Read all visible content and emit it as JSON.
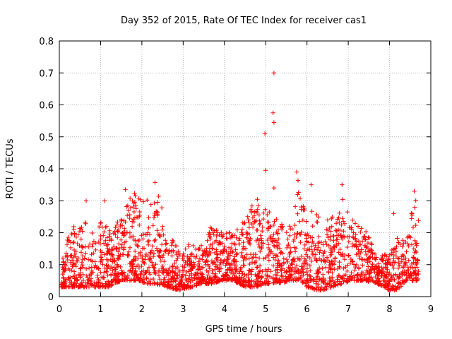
{
  "chart_data": {
    "type": "scatter",
    "title": "Day 352 of 2015, Rate Of TEC Index for receiver cas1",
    "xlabel": "GPS time / hours",
    "ylabel": "ROTI / TECUs",
    "xlim": [
      0,
      9
    ],
    "ylim": [
      0,
      0.8
    ],
    "xticks": [
      "0",
      "1",
      "2",
      "3",
      "4",
      "5",
      "6",
      "7",
      "8",
      "9"
    ],
    "yticks": [
      "0",
      "0.1",
      "0.2",
      "0.3",
      "0.4",
      "0.5",
      "0.6",
      "0.7",
      "0.8"
    ],
    "grid": true,
    "marker": "+",
    "color": "#ff0000",
    "outliers": [
      {
        "x": 5.2,
        "y": 0.7
      },
      {
        "x": 5.18,
        "y": 0.575
      },
      {
        "x": 5.2,
        "y": 0.545
      },
      {
        "x": 4.98,
        "y": 0.51
      },
      {
        "x": 5.0,
        "y": 0.395
      },
      {
        "x": 5.75,
        "y": 0.39
      },
      {
        "x": 5.2,
        "y": 0.34
      },
      {
        "x": 6.85,
        "y": 0.35
      },
      {
        "x": 1.6,
        "y": 0.335
      },
      {
        "x": 8.6,
        "y": 0.33
      },
      {
        "x": 0.65,
        "y": 0.3
      },
      {
        "x": 1.1,
        "y": 0.3
      },
      {
        "x": 8.1,
        "y": 0.26
      },
      {
        "x": 6.1,
        "y": 0.35
      },
      {
        "x": 6.5,
        "y": 0.24
      }
    ],
    "envelope": {
      "x": [
        0.05,
        0.3,
        0.6,
        0.9,
        1.2,
        1.5,
        1.9,
        2.1,
        2.35,
        2.6,
        2.9,
        3.2,
        3.5,
        3.7,
        3.95,
        4.2,
        4.5,
        4.75,
        5.0,
        5.3,
        5.6,
        5.8,
        6.0,
        6.2,
        6.4,
        6.6,
        6.85,
        7.1,
        7.4,
        7.7,
        8.0,
        8.2,
        8.4,
        8.55,
        8.7
      ],
      "hi": [
        0.12,
        0.22,
        0.26,
        0.24,
        0.22,
        0.25,
        0.36,
        0.3,
        0.37,
        0.2,
        0.16,
        0.17,
        0.16,
        0.24,
        0.21,
        0.2,
        0.24,
        0.31,
        0.28,
        0.24,
        0.22,
        0.38,
        0.24,
        0.29,
        0.21,
        0.26,
        0.31,
        0.24,
        0.22,
        0.12,
        0.14,
        0.19,
        0.18,
        0.29,
        0.32
      ],
      "lo": [
        0.03,
        0.03,
        0.03,
        0.03,
        0.03,
        0.05,
        0.05,
        0.04,
        0.04,
        0.03,
        0.02,
        0.03,
        0.04,
        0.04,
        0.05,
        0.05,
        0.03,
        0.03,
        0.04,
        0.04,
        0.05,
        0.05,
        0.03,
        0.02,
        0.02,
        0.03,
        0.04,
        0.05,
        0.05,
        0.04,
        0.02,
        0.02,
        0.05,
        0.05,
        0.05
      ]
    }
  }
}
